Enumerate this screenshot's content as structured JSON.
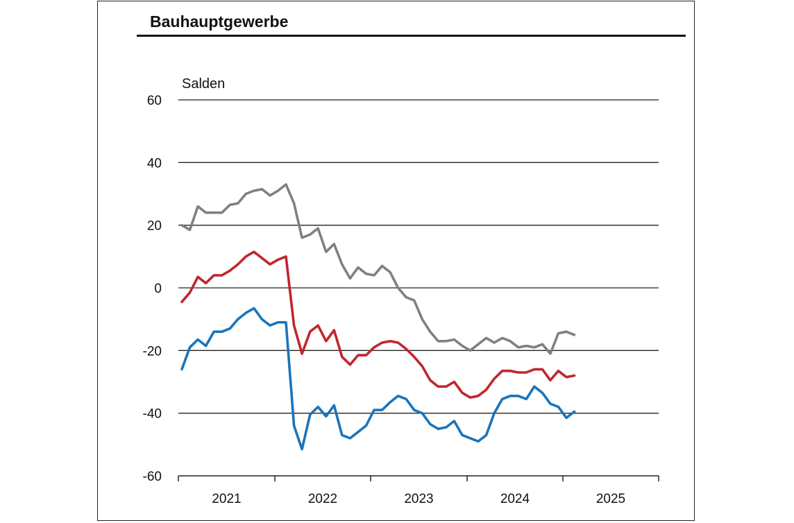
{
  "title": "Bauhauptgewerbe",
  "chart_data": {
    "type": "line",
    "title": "Bauhauptgewerbe",
    "ylabel": "Salden",
    "xlabel": "",
    "ylim": [
      -60,
      60
    ],
    "y_ticks": [
      60,
      40,
      20,
      0,
      -20,
      -40,
      -60
    ],
    "x_tick_labels": [
      "2021",
      "2022",
      "2023",
      "2024",
      "2025"
    ],
    "x_start": "2021-01",
    "grid": true,
    "series": [
      {
        "color": "#808080",
        "values": [
          20,
          18.5,
          26,
          24,
          24,
          24,
          26.5,
          27,
          30,
          31,
          31.5,
          29.5,
          31,
          33,
          27,
          16,
          17,
          19,
          11.5,
          14,
          7.5,
          3,
          6.5,
          4.5,
          4,
          7,
          5,
          0,
          -3,
          -4,
          -10,
          -14,
          -17,
          -17,
          -16.5,
          -18.5,
          -20,
          -18,
          -16,
          -17.5,
          -16,
          -17,
          -19,
          -18.5,
          -19,
          -18,
          -21,
          -14.5,
          -14,
          -15
        ]
      },
      {
        "color": "#c0262d",
        "values": [
          -4.5,
          -1.5,
          3.5,
          1.5,
          4,
          4,
          5.5,
          7.5,
          10,
          11.5,
          9.5,
          7.5,
          9,
          10,
          -12,
          -21,
          -14,
          -12,
          -17,
          -13.5,
          -22,
          -24.5,
          -21.5,
          -21.5,
          -19,
          -17.5,
          -17,
          -17.5,
          -19.5,
          -22,
          -25,
          -29.5,
          -31.5,
          -31.5,
          -30,
          -33.5,
          -35,
          -34.5,
          -32.5,
          -29,
          -26.5,
          -26.5,
          -27,
          -27,
          -26,
          -26,
          -29.5,
          -26.5,
          -28.5,
          -28
        ]
      },
      {
        "color": "#1a74bb",
        "values": [
          -26,
          -19,
          -16.5,
          -18.5,
          -14,
          -14,
          -13,
          -10,
          -8,
          -6.5,
          -10,
          -12,
          -11,
          -11,
          -44,
          -51.5,
          -40.5,
          -38,
          -41,
          -37.5,
          -47,
          -48,
          -46,
          -44,
          -39,
          -39,
          -36.5,
          -34.5,
          -35.5,
          -39,
          -40,
          -43.5,
          -45,
          -44.5,
          -42.5,
          -47,
          -48,
          -49,
          -47,
          -40,
          -35.5,
          -34.5,
          -34.5,
          -35.5,
          -31.5,
          -33.5,
          -37,
          -38,
          -41.5,
          -39.5
        ]
      }
    ]
  }
}
